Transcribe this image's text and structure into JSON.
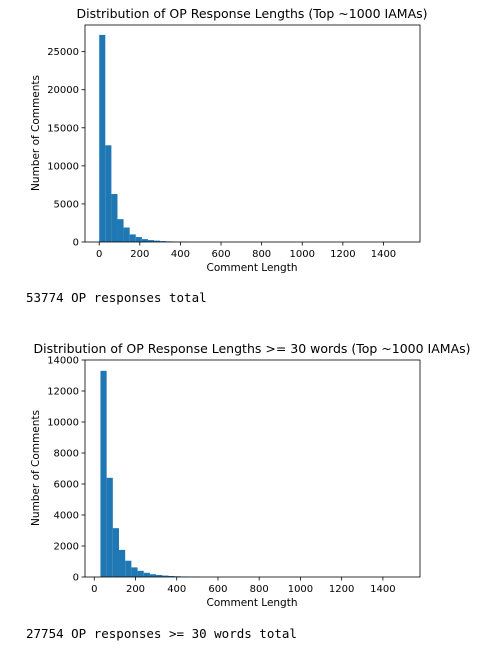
{
  "chart_data": [
    {
      "type": "bar",
      "title": "Distribution of OP Response Lengths (Top ~1000 IAMAs)",
      "xlabel": "Comment Length",
      "ylabel": "Number of Comments",
      "xlim": [
        -70,
        1580
      ],
      "ylim": [
        0,
        28500
      ],
      "xticks": [
        0,
        200,
        400,
        600,
        800,
        1000,
        1200,
        1400
      ],
      "yticks": [
        0,
        5000,
        10000,
        15000,
        20000,
        25000
      ],
      "bin_width": 30,
      "bins": [
        [
          0,
          27200
        ],
        [
          30,
          12700
        ],
        [
          60,
          6300
        ],
        [
          90,
          3000
        ],
        [
          120,
          1900
        ],
        [
          150,
          1000
        ],
        [
          180,
          650
        ],
        [
          210,
          380
        ],
        [
          240,
          250
        ],
        [
          270,
          180
        ],
        [
          300,
          120
        ],
        [
          330,
          80
        ],
        [
          360,
          55
        ],
        [
          390,
          40
        ],
        [
          420,
          25
        ]
      ],
      "grid": false,
      "color": "#1f77b4"
    },
    {
      "type": "bar",
      "title": "Distribution of OP Response Lengths >= 30 words (Top ~1000 IAMAs)",
      "xlabel": "Comment Length",
      "ylabel": "Number of Comments",
      "xlim": [
        -45,
        1580
      ],
      "ylim": [
        0,
        14000
      ],
      "xticks": [
        0,
        200,
        400,
        600,
        800,
        1000,
        1200,
        1400
      ],
      "yticks": [
        0,
        2000,
        4000,
        6000,
        8000,
        10000,
        12000,
        14000
      ],
      "bin_width": 30,
      "bins": [
        [
          30,
          13300
        ],
        [
          60,
          6400
        ],
        [
          90,
          3150
        ],
        [
          120,
          1750
        ],
        [
          150,
          1050
        ],
        [
          180,
          620
        ],
        [
          210,
          400
        ],
        [
          240,
          270
        ],
        [
          270,
          180
        ],
        [
          300,
          130
        ],
        [
          330,
          90
        ],
        [
          360,
          65
        ],
        [
          390,
          45
        ],
        [
          420,
          32
        ],
        [
          450,
          22
        ],
        [
          480,
          14
        ]
      ],
      "grid": false,
      "color": "#1f77b4"
    }
  ],
  "outputs": {
    "chart1_summary": "53774 OP responses total",
    "chart2_summary": "27754 OP responses >= 30 words total"
  }
}
